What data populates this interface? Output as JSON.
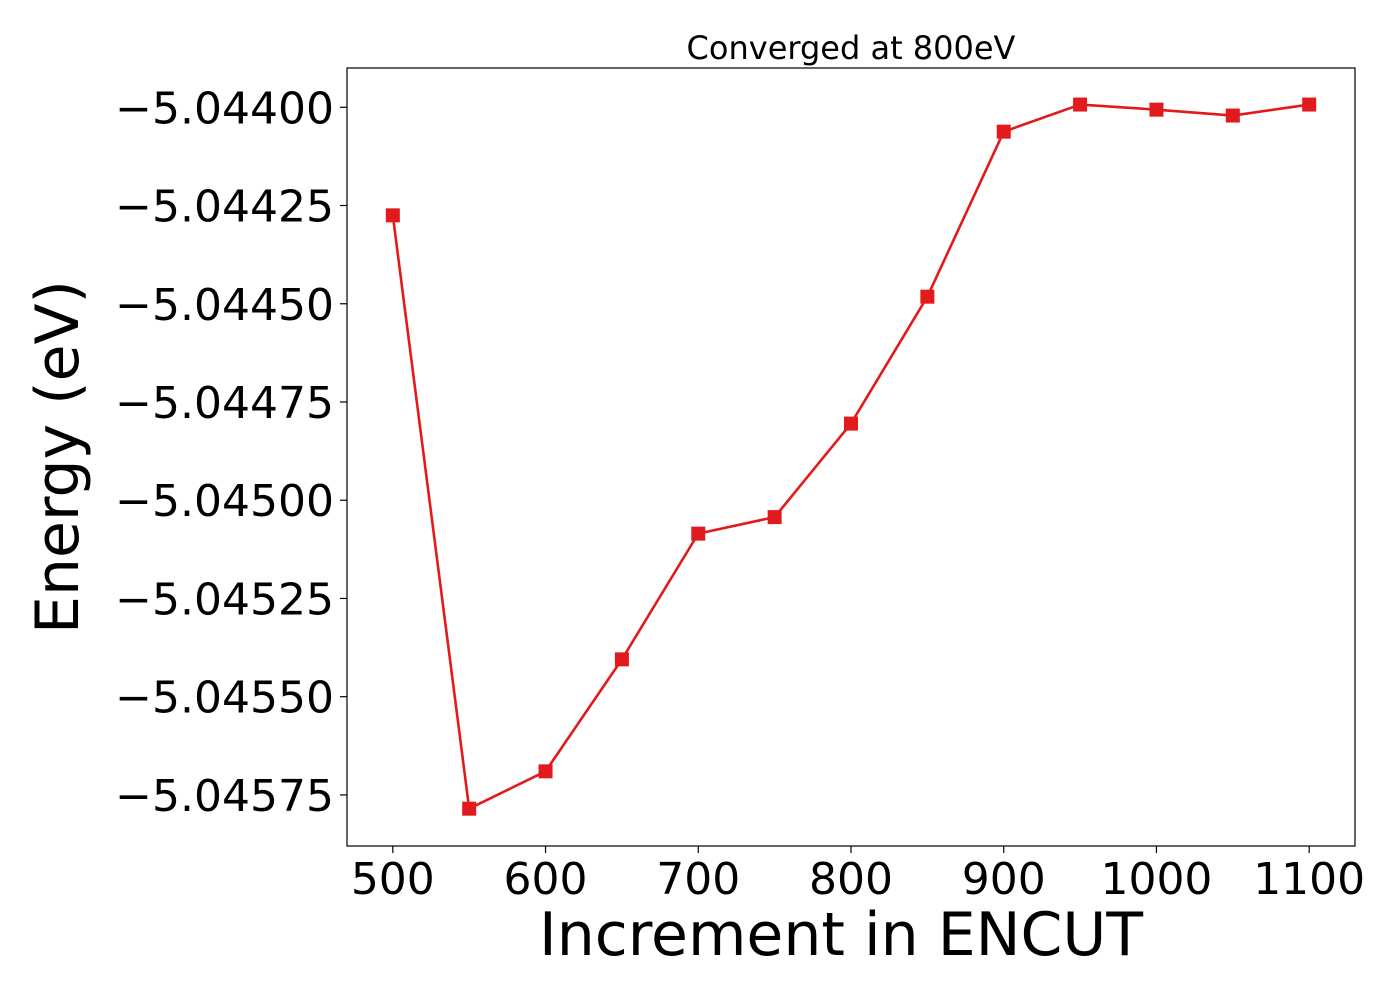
{
  "chart_data": {
    "type": "line",
    "title": "Converged at 800eV",
    "xlabel": "Increment in ENCUT",
    "ylabel": "Energy (eV)",
    "xlim": [
      470,
      1130
    ],
    "ylim": [
      -5.04588,
      -5.0439
    ],
    "x_ticks": [
      500,
      600,
      700,
      800,
      900,
      1000,
      1100
    ],
    "x_tick_labels": [
      "500",
      "600",
      "700",
      "800",
      "900",
      "1000",
      "1100"
    ],
    "y_ticks": [
      -5.044,
      -5.04425,
      -5.0445,
      -5.04475,
      -5.045,
      -5.04525,
      -5.0455,
      -5.04575
    ],
    "y_tick_labels": [
      "−5.04400",
      "−5.04425",
      "−5.04450",
      "−5.04475",
      "−5.04500",
      "−5.04525",
      "−5.04550",
      "−5.04575"
    ],
    "grid": false,
    "marker": "square",
    "color": "#e31a1c",
    "series": [
      {
        "x": [
          500,
          550,
          600,
          650,
          700,
          750,
          800,
          850,
          900,
          950,
          1000,
          1050,
          1100
        ],
        "y": [
          -5.044275,
          -5.045785,
          -5.04569,
          -5.045405,
          -5.045085,
          -5.045043,
          -5.044805,
          -5.044482,
          -5.044062,
          -5.043993,
          -5.044006,
          -5.044021,
          -5.043993
        ]
      }
    ]
  }
}
